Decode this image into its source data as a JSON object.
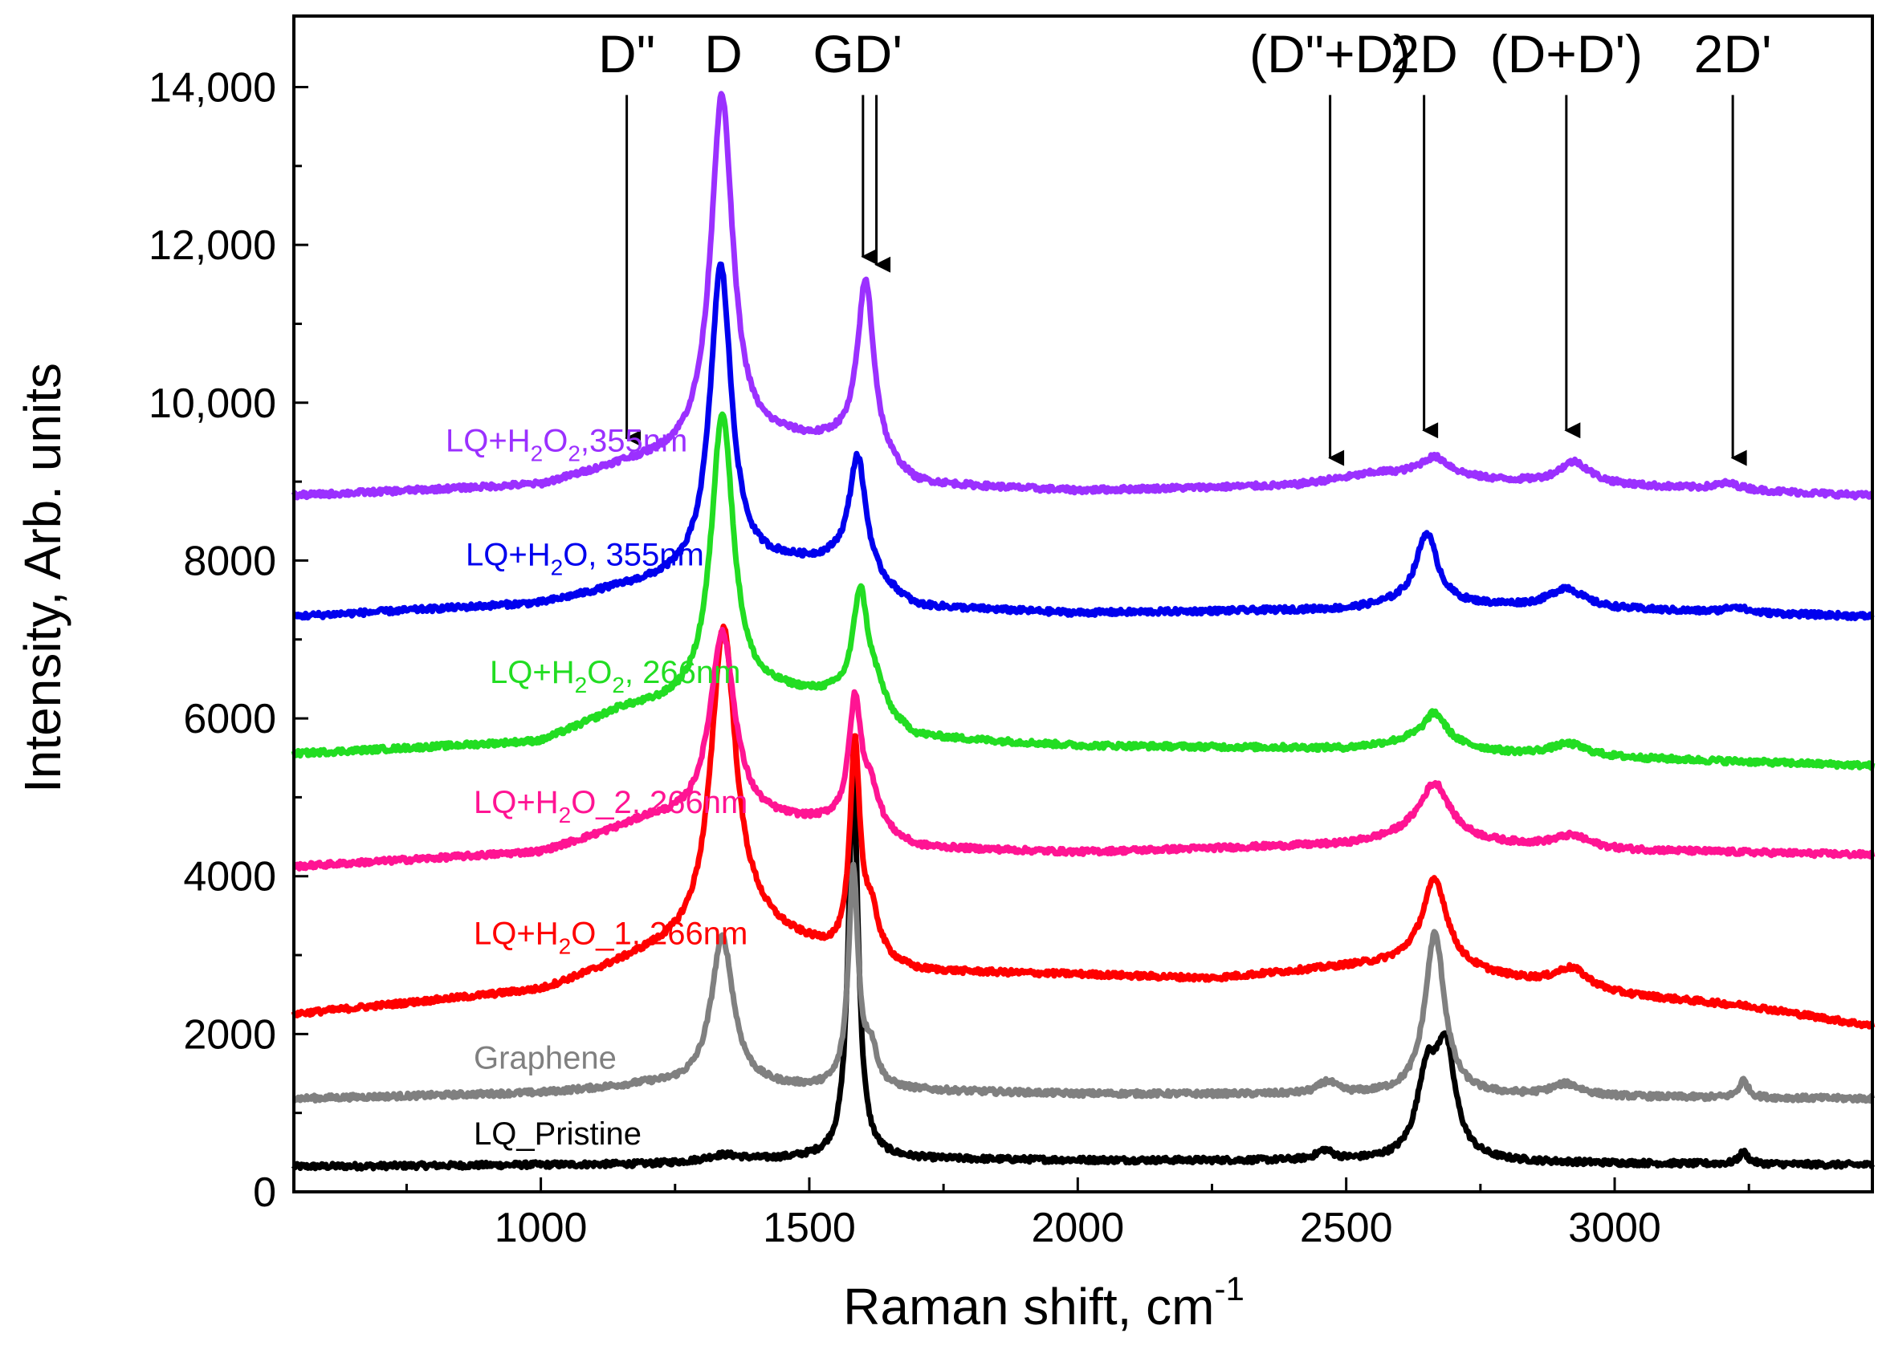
{
  "chart_data": {
    "type": "line",
    "xlabel": "Raman shift, cm",
    "xlabel_sup": "-1",
    "ylabel": "Intensity, Arb. units",
    "xlim": [
      540,
      3480
    ],
    "ylim": [
      0,
      14900
    ],
    "x_ticks": [
      1000,
      1500,
      2000,
      2500,
      3000
    ],
    "x_tick_labels": [
      "1000",
      "1500",
      "2000",
      "2500",
      "3000"
    ],
    "y_ticks": [
      0,
      2000,
      4000,
      6000,
      8000,
      10000,
      12000,
      14000
    ],
    "y_tick_labels": [
      "0",
      "2000",
      "4000",
      "6000",
      "8000",
      "10,000",
      "12,000",
      "14,000"
    ],
    "peak_markers": [
      {
        "label": "D\"",
        "x": 1160,
        "arrow_from": 13900,
        "arrow_to": 9550
      },
      {
        "label": "D",
        "x": 1340,
        "arrow_from": null,
        "arrow_to": null
      },
      {
        "label": "GD'",
        "x": 1600,
        "arrow_from": 13900,
        "arrow_to": 11850
      },
      {
        "label": "",
        "x": 1625,
        "arrow_from": 13900,
        "arrow_to": 11750
      },
      {
        "label": "(D\"+D)",
        "x": 2470,
        "arrow_from": 13900,
        "arrow_to": 9300
      },
      {
        "label": "2D",
        "x": 2645,
        "arrow_from": 13900,
        "arrow_to": 9650
      },
      {
        "label": "(D+D')",
        "x": 2910,
        "arrow_from": 13900,
        "arrow_to": 9650
      },
      {
        "label": "2D'",
        "x": 3220,
        "arrow_from": 13900,
        "arrow_to": 9300
      }
    ],
    "series": [
      {
        "name": "LQ_Pristine",
        "label_parts": [
          {
            "t": "LQ_Pristine"
          }
        ],
        "color": "#000000",
        "label_x": 590,
        "label_y": 600,
        "baseline": [
          [
            540,
            320
          ],
          [
            1200,
            350
          ],
          [
            1500,
            420
          ],
          [
            2000,
            400
          ],
          [
            2500,
            390
          ],
          [
            3000,
            360
          ],
          [
            3480,
            340
          ]
        ],
        "peaks": [
          [
            1340,
            80,
            40
          ],
          [
            1582,
            4900,
            11
          ],
          [
            2460,
            120,
            18
          ],
          [
            2650,
            1000,
            22
          ],
          [
            2685,
            1350,
            22
          ],
          [
            3240,
            150,
            10
          ]
        ]
      },
      {
        "name": "Graphene",
        "label_parts": [
          {
            "t": "Graphene"
          }
        ],
        "color": "#808080",
        "label_x": 590,
        "label_y": 1560,
        "baseline": [
          [
            540,
            1180
          ],
          [
            1000,
            1250
          ],
          [
            1200,
            1350
          ],
          [
            1500,
            1300
          ],
          [
            2000,
            1240
          ],
          [
            2500,
            1230
          ],
          [
            3000,
            1200
          ],
          [
            3480,
            1180
          ]
        ],
        "peaks": [
          [
            1338,
            1900,
            25
          ],
          [
            1582,
            2750,
            11
          ],
          [
            1615,
            450,
            14
          ],
          [
            2465,
            150,
            20
          ],
          [
            2665,
            2050,
            22
          ],
          [
            2910,
            150,
            35
          ],
          [
            3240,
            220,
            10
          ]
        ]
      },
      {
        "name": "LQ+H2O_1, 266nm",
        "label_parts": [
          {
            "t": "LQ+H"
          },
          {
            "t": "2",
            "sub": true
          },
          {
            "t": "O_1, 266nm"
          }
        ],
        "color": "#ff0000",
        "label_x": 590,
        "label_y": 3140,
        "baseline": [
          [
            540,
            2250
          ],
          [
            1000,
            2550
          ],
          [
            1200,
            3000
          ],
          [
            1400,
            3300
          ],
          [
            1550,
            3000
          ],
          [
            1700,
            2780
          ],
          [
            2000,
            2750
          ],
          [
            2250,
            2700
          ],
          [
            2500,
            2850
          ],
          [
            2620,
            2900
          ],
          [
            2800,
            2700
          ],
          [
            3000,
            2500
          ],
          [
            3250,
            2350
          ],
          [
            3480,
            2100
          ]
        ],
        "peaks": [
          [
            1340,
            3950,
            28
          ],
          [
            1585,
            2650,
            11
          ],
          [
            1615,
            550,
            18
          ],
          [
            2665,
            1100,
            28
          ],
          [
            2920,
            250,
            38
          ]
        ]
      },
      {
        "name": "LQ+H2O_2, 266nm",
        "label_parts": [
          {
            "t": "LQ+H"
          },
          {
            "t": "2",
            "sub": true
          },
          {
            "t": "O_2, 266nm"
          }
        ],
        "color": "#ff1493",
        "label_x": 590,
        "label_y": 4800,
        "baseline": [
          [
            540,
            4120
          ],
          [
            1000,
            4300
          ],
          [
            1200,
            4700
          ],
          [
            1450,
            4680
          ],
          [
            1550,
            4650
          ],
          [
            1700,
            4350
          ],
          [
            2000,
            4300
          ],
          [
            2500,
            4400
          ],
          [
            2620,
            4500
          ],
          [
            2800,
            4400
          ],
          [
            3000,
            4330
          ],
          [
            3480,
            4270
          ]
        ],
        "peaks": [
          [
            1338,
            2400,
            28
          ],
          [
            1585,
            1550,
            14
          ],
          [
            1615,
            500,
            20
          ],
          [
            2665,
            700,
            34
          ],
          [
            2920,
            150,
            40
          ]
        ]
      },
      {
        "name": "LQ+H2O2, 266nm",
        "label_parts": [
          {
            "t": "LQ+H"
          },
          {
            "t": "2",
            "sub": true
          },
          {
            "t": "O"
          },
          {
            "t": "2",
            "sub": true
          },
          {
            "t": ", 266nm"
          }
        ],
        "color": "#22dd22",
        "label_x": 610,
        "label_y": 6450,
        "baseline": [
          [
            540,
            5550
          ],
          [
            1000,
            5700
          ],
          [
            1150,
            6100
          ],
          [
            1450,
            6300
          ],
          [
            1550,
            6250
          ],
          [
            1700,
            5750
          ],
          [
            2000,
            5650
          ],
          [
            2500,
            5620
          ],
          [
            2620,
            5700
          ],
          [
            2800,
            5560
          ],
          [
            3000,
            5500
          ],
          [
            3480,
            5400
          ]
        ],
        "peaks": [
          [
            1338,
            3650,
            25
          ],
          [
            1595,
            1450,
            17
          ],
          [
            1625,
            300,
            20
          ],
          [
            2665,
            400,
            26
          ],
          [
            2915,
            150,
            40
          ]
        ]
      },
      {
        "name": "LQ+H2O, 355nm",
        "label_parts": [
          {
            "t": "LQ+H"
          },
          {
            "t": "2",
            "sub": true
          },
          {
            "t": "O, 355nm"
          }
        ],
        "color": "#0000ee",
        "label_x": 580,
        "label_y": 7940,
        "baseline": [
          [
            540,
            7290
          ],
          [
            1000,
            7450
          ],
          [
            1150,
            7650
          ],
          [
            1450,
            7950
          ],
          [
            1550,
            7950
          ],
          [
            1700,
            7400
          ],
          [
            2000,
            7330
          ],
          [
            2500,
            7380
          ],
          [
            2600,
            7450
          ],
          [
            2800,
            7420
          ],
          [
            3000,
            7380
          ],
          [
            3480,
            7290
          ]
        ],
        "peaks": [
          [
            1335,
            3900,
            24
          ],
          [
            1590,
            1500,
            19
          ],
          [
            2650,
            900,
            24
          ],
          [
            2910,
            250,
            38
          ],
          [
            3225,
            80,
            20
          ]
        ]
      },
      {
        "name": "LQ+H2O2,355nm",
        "label_parts": [
          {
            "t": "LQ+H"
          },
          {
            "t": "2",
            "sub": true
          },
          {
            "t": "O"
          },
          {
            "t": "2",
            "sub": true
          },
          {
            "t": ",355nm"
          }
        ],
        "color": "#9b30ff",
        "label_x": 555,
        "label_y": 9380,
        "baseline": [
          [
            540,
            8820
          ],
          [
            1000,
            8950
          ],
          [
            1150,
            9200
          ],
          [
            1450,
            9500
          ],
          [
            1550,
            9450
          ],
          [
            1700,
            8950
          ],
          [
            2000,
            8880
          ],
          [
            2400,
            8950
          ],
          [
            2560,
            9100
          ],
          [
            2800,
            9000
          ],
          [
            3000,
            8950
          ],
          [
            3480,
            8820
          ]
        ],
        "peaks": [
          [
            1337,
            4500,
            25
          ],
          [
            1605,
            2250,
            19
          ],
          [
            2665,
            250,
            35
          ],
          [
            2925,
            280,
            35
          ],
          [
            3210,
            80,
            30
          ]
        ]
      }
    ]
  }
}
